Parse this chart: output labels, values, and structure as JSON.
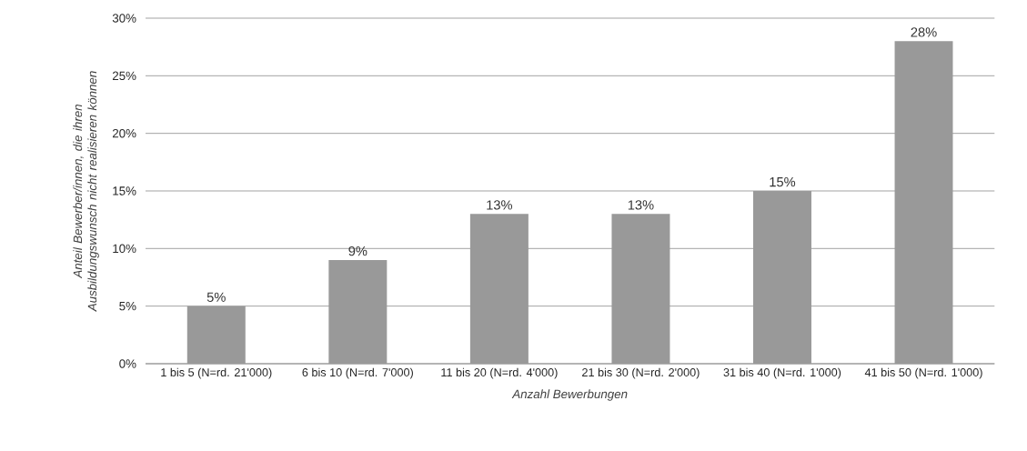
{
  "chart_data": {
    "type": "bar",
    "xlabel": "Anzahl Bewerbungen",
    "ylabel": "Anteil Bewerber/innen, die ihren Ausbildungswunsch nicht realisieren können",
    "categories": [
      "1 bis 5 (N=rd. 21'000)",
      "6 bis 10 (N=rd. 7'000)",
      "11 bis 20 (N=rd. 4'000)",
      "21 bis 30 (N=rd. 2'000)",
      "31 bis 40 (N=rd. 1'000)",
      "41 bis 50 (N=rd. 1'000)"
    ],
    "values": [
      5,
      9,
      13,
      13,
      15,
      28
    ],
    "value_labels": [
      "5%",
      "9%",
      "13%",
      "13%",
      "15%",
      "28%"
    ],
    "color": "#999999",
    "ylim": [
      0,
      30
    ],
    "yticks": [
      {
        "value": 0,
        "label": "0%"
      },
      {
        "value": 5,
        "label": "5%"
      },
      {
        "value": 10,
        "label": "10%"
      },
      {
        "value": 15,
        "label": "15%"
      },
      {
        "value": 20,
        "label": "20%"
      },
      {
        "value": 25,
        "label": "25%"
      },
      {
        "value": 30,
        "label": "30%"
      }
    ],
    "grid": "y"
  }
}
